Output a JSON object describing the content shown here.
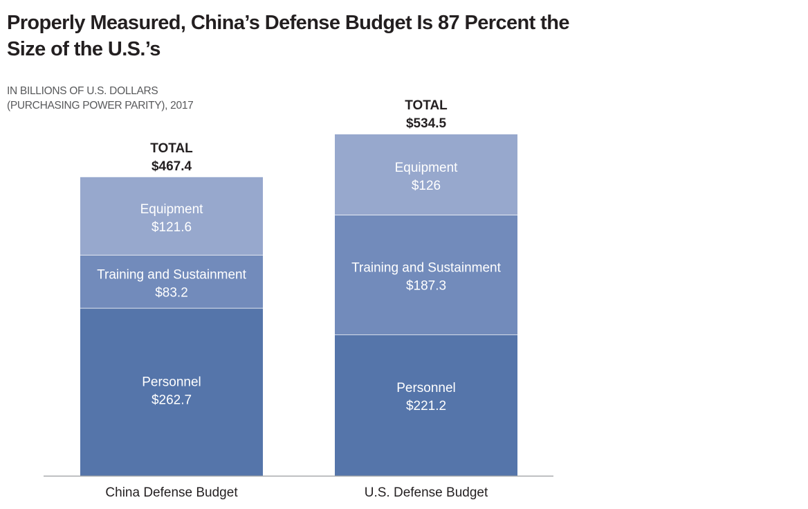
{
  "title": "Properly Measured, China’s Defense Budget Is 87 Percent the Size of the U.S.’s",
  "subtitle_lines": [
    "IN BILLIONS OF U.S. DOLLARS",
    "(PURCHASING POWER PARITY), 2017"
  ],
  "colors": {
    "Personnel": "#5575aa",
    "Training and Sustainment": "#728bbb",
    "Equipment": "#97a8cd",
    "baseline": "#a7a9ac",
    "segment_divider": "#ffffff"
  },
  "chart_data": {
    "type": "bar",
    "stacked": true,
    "title": "Properly Measured, China’s Defense Budget Is 87 Percent the Size of the U.S.’s",
    "subtitle": "IN BILLIONS OF U.S. DOLLARS (PURCHASING POWER PARITY), 2017",
    "xlabel": "",
    "ylabel": "",
    "categories": [
      "China Defense Budget",
      "U.S. Defense Budget"
    ],
    "series": [
      {
        "name": "Personnel",
        "values": [
          262.7,
          221.2
        ],
        "labels": [
          "$262.7",
          "$221.2"
        ]
      },
      {
        "name": "Training and Sustainment",
        "values": [
          83.2,
          187.3
        ],
        "labels": [
          "$83.2",
          "$187.3"
        ]
      },
      {
        "name": "Equipment",
        "values": [
          121.6,
          126
        ],
        "labels": [
          "$121.6",
          "$126"
        ]
      }
    ],
    "totals": {
      "label": "TOTAL",
      "values": [
        467.4,
        534.5
      ],
      "labels": [
        "$467.4",
        "$534.5"
      ]
    },
    "ylim": [
      0,
      534.5
    ],
    "grid": false,
    "legend": "none (labels inside segments)"
  }
}
